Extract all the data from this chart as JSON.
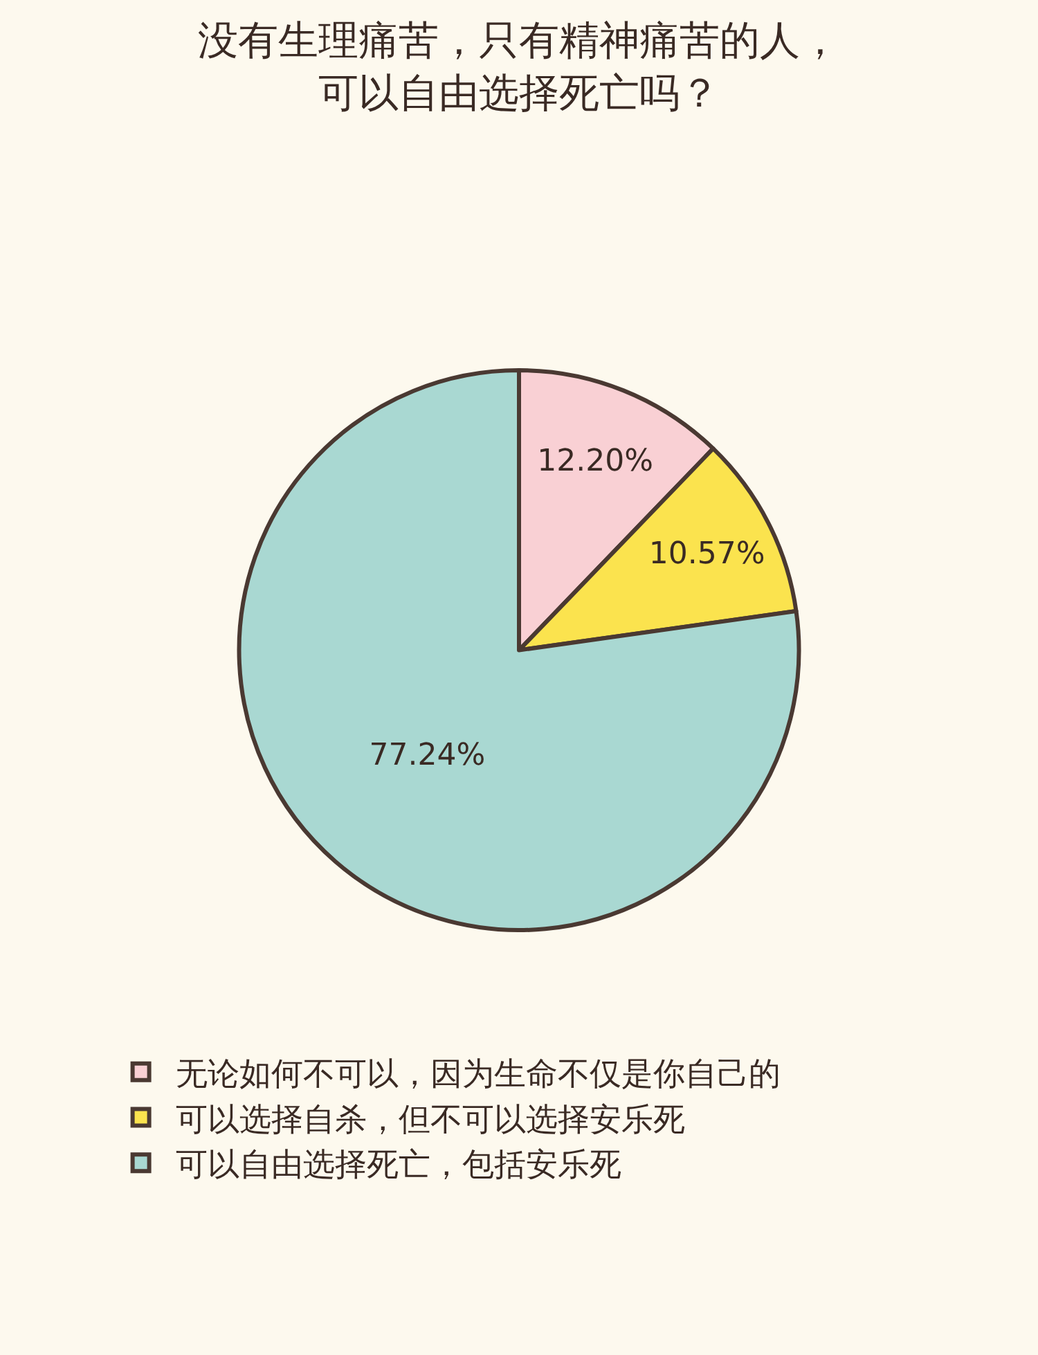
{
  "chart_data": {
    "type": "pie",
    "title": "没有生理痛苦，只有精神痛苦的人，可以自由选择死亡吗？",
    "categories": [
      "无论如何不可以，因为生命不仅是你自己的",
      "可以选择自杀，但不可以选择安乐死",
      "可以自由选择死亡，包括安乐死"
    ],
    "values": [
      12.2,
      10.57,
      77.24
    ],
    "colors": [
      "#f9d0d4",
      "#fbe34e",
      "#a9d8d2"
    ],
    "value_labels": [
      "12.20%",
      "10.57%",
      "77.24%"
    ],
    "legend": "bottom left"
  }
}
